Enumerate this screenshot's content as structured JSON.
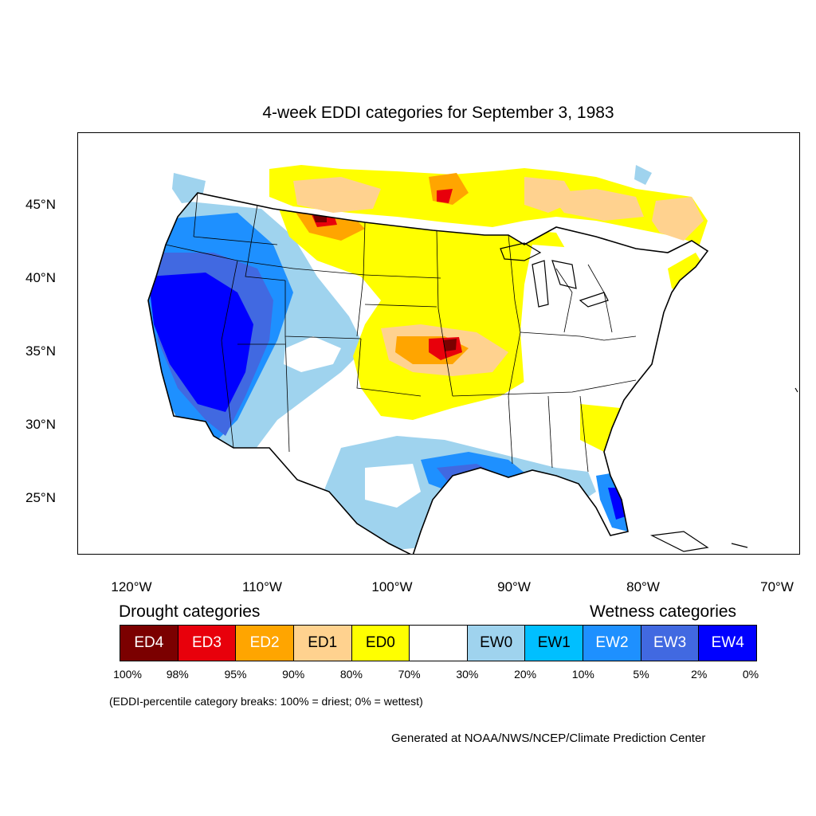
{
  "title": "4-week EDDI categories for September 3, 1983",
  "lat_labels": [
    "45°N",
    "40°N",
    "35°N",
    "30°N",
    "25°N"
  ],
  "lon_labels": [
    "120°W",
    "110°W",
    "100°W",
    "90°W",
    "80°W",
    "70°W"
  ],
  "drought_heading": "Drought categories",
  "wetness_heading": "Wetness categories",
  "legend": [
    {
      "label": "ED4",
      "color": "#7b0000",
      "text_color": "#ffffff"
    },
    {
      "label": "ED3",
      "color": "#e8000b",
      "text_color": "#ffffff"
    },
    {
      "label": "ED2",
      "color": "#ffa500",
      "text_color": "#ffffff"
    },
    {
      "label": "ED1",
      "color": "#ffd28f",
      "text_color": "#000000"
    },
    {
      "label": "ED0",
      "color": "#ffff00",
      "text_color": "#000000"
    },
    {
      "label": "",
      "color": "#ffffff",
      "text_color": "#000000"
    },
    {
      "label": "EW0",
      "color": "#9fd3ee",
      "text_color": "#000000"
    },
    {
      "label": "EW1",
      "color": "#00bfff",
      "text_color": "#000000"
    },
    {
      "label": "EW2",
      "color": "#1e90ff",
      "text_color": "#ffffff"
    },
    {
      "label": "EW3",
      "color": "#4169e1",
      "text_color": "#ffffff"
    },
    {
      "label": "EW4",
      "color": "#0000ff",
      "text_color": "#ffffff"
    }
  ],
  "percent_breaks": [
    "100%",
    "98%",
    "95%",
    "90%",
    "80%",
    "70%",
    "30%",
    "20%",
    "10%",
    "5%",
    "2%",
    "0%"
  ],
  "note": "(EDDI-percentile category breaks: 100% = driest; 0% = wettest)",
  "credit": "Generated at NOAA/NWS/NCEP/Climate Prediction Center"
}
